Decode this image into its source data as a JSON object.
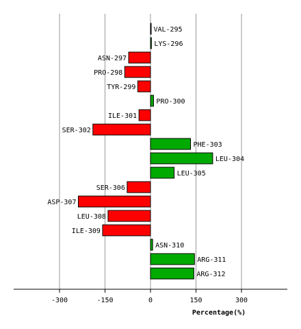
{
  "chart_data": {
    "type": "bar",
    "orientation": "horizontal",
    "title": "",
    "xlabel": "Percentage(%)",
    "ylabel": "",
    "xlim": [
      -450,
      450
    ],
    "x_ticks": [
      -300,
      -150,
      0,
      150,
      300
    ],
    "grid": true,
    "positive_color": "#00aa00",
    "negative_color": "#ff0000",
    "categories": [
      "VAL-295",
      "LYS-296",
      "ASN-297",
      "PRO-298",
      "TYR-299",
      "PRO-300",
      "ILE-301",
      "SER-302",
      "PHE-303",
      "LEU-304",
      "LEU-305",
      "SER-306",
      "ASP-307",
      "LEU-308",
      "ILE-309",
      "ASN-310",
      "ARG-311",
      "ARG-312"
    ],
    "values": [
      1,
      3,
      -72,
      -85,
      -42,
      10,
      -38,
      -190,
      132,
      205,
      78,
      -77,
      -238,
      -140,
      -158,
      7,
      145,
      143
    ]
  }
}
